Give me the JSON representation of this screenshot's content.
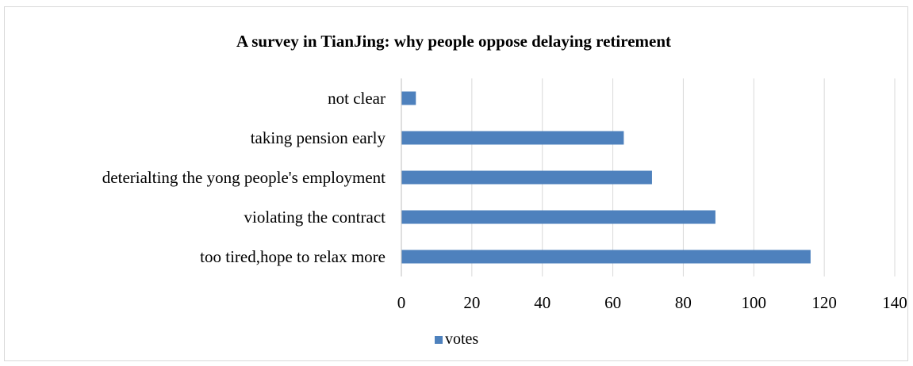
{
  "chart_data": {
    "type": "bar",
    "orientation": "horizontal",
    "title": "A survey in TianJing: why people oppose delaying retirement",
    "categories": [
      "not clear",
      "taking pension early",
      "deterialting the yong people's employment",
      "violating the contract",
      "too tired,hope to relax more"
    ],
    "series": [
      {
        "name": "votes",
        "values": [
          4,
          63,
          71,
          89,
          116
        ]
      }
    ],
    "xlim": [
      0,
      140
    ],
    "xticks": [
      "0",
      "20",
      "40",
      "60",
      "80",
      "100",
      "120",
      "140"
    ],
    "grid": "vertical",
    "legend_position": "bottom",
    "bar_color": "#4e81bd",
    "grid_color": "#d9d9d9"
  }
}
